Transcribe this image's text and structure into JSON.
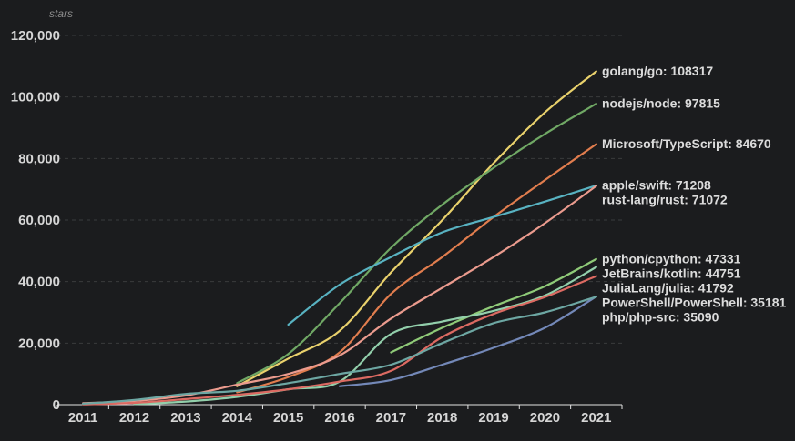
{
  "chart_data": {
    "type": "line",
    "title": "stars",
    "ylabel": "stars",
    "xlabel": "",
    "x_categories": [
      "2011",
      "2012",
      "2013",
      "2014",
      "2015",
      "2016",
      "2017",
      "2018",
      "2019",
      "2020",
      "2021"
    ],
    "ylim": [
      0,
      120000
    ],
    "y_ticks": [
      {
        "value": 0,
        "label": "0"
      },
      {
        "value": 20000,
        "label": "20,000"
      },
      {
        "value": 40000,
        "label": "40,000"
      },
      {
        "value": 60000,
        "label": "60,000"
      },
      {
        "value": 80000,
        "label": "80,000"
      },
      {
        "value": 100000,
        "label": "100,000"
      },
      {
        "value": 120000,
        "label": "120,000"
      }
    ],
    "grid": "horizontal-dashed",
    "legend_position": "end-of-line-labels",
    "background_color": "#1b1c1e",
    "series": [
      {
        "name": "golang/go",
        "final_value": 108317,
        "end_label": "golang/go: 108317",
        "color": "#e9d16c",
        "values": [
          null,
          null,
          null,
          6000,
          15000,
          24000,
          43000,
          60000,
          78500,
          95000,
          108317
        ]
      },
      {
        "name": "nodejs/node",
        "final_value": 97815,
        "end_label": "nodejs/node: 97815",
        "color": "#70a865",
        "values": [
          null,
          null,
          null,
          7000,
          16500,
          33000,
          51000,
          65000,
          77000,
          88000,
          97815
        ]
      },
      {
        "name": "Microsoft/TypeScript",
        "final_value": 84670,
        "end_label": "Microsoft/TypeScript: 84670",
        "color": "#e17d4e",
        "values": [
          null,
          null,
          null,
          4000,
          9000,
          17000,
          36000,
          48000,
          61000,
          73000,
          84670
        ]
      },
      {
        "name": "apple/swift",
        "final_value": 71208,
        "end_label": "apple/swift: 71208",
        "color": "#58b2c1",
        "values": [
          null,
          null,
          null,
          null,
          26000,
          39000,
          48000,
          56000,
          61000,
          66000,
          71208
        ]
      },
      {
        "name": "rust-lang/rust",
        "final_value": 71072,
        "end_label": "rust-lang/rust: 71072",
        "color": "#eb9b8e",
        "values": [
          500,
          1200,
          3000,
          6500,
          10000,
          16000,
          28000,
          38000,
          48000,
          59000,
          71072
        ]
      },
      {
        "name": "python/cpython",
        "final_value": 47331,
        "end_label": "python/cpython: 47331",
        "color": "#8fca78",
        "values": [
          null,
          null,
          null,
          null,
          null,
          null,
          17000,
          25000,
          32000,
          38500,
          47331
        ]
      },
      {
        "name": "JetBrains/kotlin",
        "final_value": 44751,
        "end_label": "JetBrains/kotlin: 44751",
        "color": "#92cfab",
        "values": [
          null,
          200,
          1000,
          2500,
          5000,
          7500,
          23000,
          27000,
          30500,
          35500,
          44751
        ]
      },
      {
        "name": "JuliaLang/julia",
        "final_value": 41792,
        "end_label": "JuliaLang/julia: 41792",
        "color": "#dc6a62",
        "values": [
          100,
          600,
          1800,
          3200,
          5000,
          7500,
          11000,
          22000,
          29500,
          35000,
          41792
        ]
      },
      {
        "name": "PowerShell/PowerShell",
        "final_value": 35181,
        "end_label": "PowerShell/PowerShell: 35181",
        "color": "#7388b8",
        "values": [
          null,
          null,
          null,
          null,
          null,
          6000,
          8000,
          13000,
          18500,
          25000,
          35181
        ]
      },
      {
        "name": "php/php-src",
        "final_value": 35090,
        "end_label": "php/php-src: 35090",
        "color": "#6da7a3",
        "values": [
          300,
          1500,
          3500,
          4500,
          7000,
          10000,
          13000,
          20000,
          26500,
          30000,
          35090
        ]
      }
    ]
  }
}
